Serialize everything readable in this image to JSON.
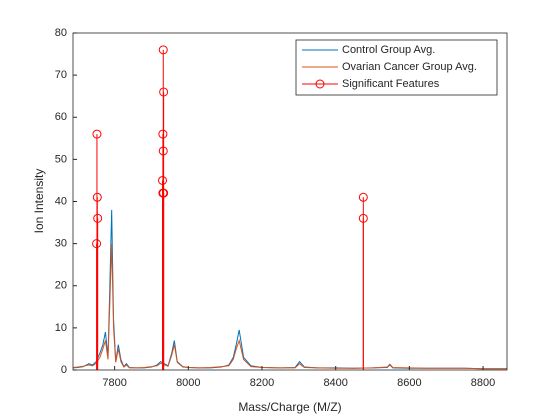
{
  "chart_data": {
    "type": "line",
    "xlabel": "Mass/Charge (M/Z)",
    "ylabel": "Ion Intensity",
    "xlim": [
      7687,
      8865
    ],
    "xticks": [
      7800,
      8000,
      8200,
      8400,
      8600,
      8800
    ],
    "ylim": [
      0,
      80
    ],
    "yticks": [
      0,
      10,
      20,
      30,
      40,
      50,
      60,
      70,
      80
    ],
    "legend": "upper right",
    "series": [
      {
        "name": "Control Group Avg.",
        "color": "#0072bd",
        "style": "line",
        "x": [
          7687,
          7700,
          7715,
          7730,
          7740,
          7750,
          7760,
          7768,
          7775,
          7782,
          7787,
          7792,
          7797,
          7803,
          7810,
          7817,
          7825,
          7832,
          7840,
          7860,
          7880,
          7900,
          7915,
          7925,
          7935,
          7945,
          7955,
          7962,
          7970,
          7985,
          8000,
          8030,
          8060,
          8090,
          8110,
          8122,
          8130,
          8138,
          8150,
          8170,
          8200,
          8250,
          8290,
          8302,
          8315,
          8350,
          8400,
          8450,
          8500,
          8540,
          8547,
          8555,
          8600,
          8650,
          8700,
          8750,
          8800,
          8865
        ],
        "values": [
          0.5,
          0.6,
          0.8,
          1.5,
          1.2,
          2,
          4,
          6,
          9,
          3,
          20,
          38,
          12,
          2,
          6,
          2.5,
          0.8,
          1.5,
          0.6,
          0.5,
          0.5,
          0.7,
          1.2,
          2,
          1.5,
          1,
          4,
          7,
          2,
          0.8,
          0.6,
          0.5,
          0.5,
          0.7,
          1.2,
          3,
          6,
          9.5,
          3,
          1,
          0.6,
          0.5,
          0.6,
          2,
          0.7,
          0.5,
          0.5,
          0.4,
          0.5,
          0.6,
          1.2,
          0.5,
          0.4,
          0.4,
          0.4,
          0.4,
          0.3,
          0.3
        ]
      },
      {
        "name": "Ovarian Cancer Group Avg.",
        "color": "#d95319",
        "style": "line",
        "x": [
          7687,
          7700,
          7715,
          7730,
          7740,
          7750,
          7760,
          7768,
          7775,
          7782,
          7787,
          7792,
          7797,
          7803,
          7810,
          7817,
          7825,
          7832,
          7840,
          7860,
          7880,
          7900,
          7915,
          7925,
          7935,
          7945,
          7955,
          7962,
          7970,
          7985,
          8000,
          8030,
          8060,
          8090,
          8110,
          8122,
          8130,
          8138,
          8150,
          8170,
          8200,
          8250,
          8290,
          8302,
          8315,
          8350,
          8400,
          8450,
          8500,
          8540,
          8547,
          8555,
          8600,
          8650,
          8700,
          8750,
          8800,
          8865
        ],
        "values": [
          0.6,
          0.7,
          0.9,
          1.2,
          1,
          1.6,
          3,
          5,
          7,
          2.5,
          16,
          30,
          10,
          1.8,
          5,
          2,
          0.7,
          1.2,
          0.5,
          0.5,
          0.6,
          0.8,
          1,
          1.6,
          1.2,
          0.9,
          3.5,
          6,
          1.8,
          0.7,
          0.6,
          0.5,
          0.6,
          0.8,
          1,
          2.5,
          5,
          7,
          2.5,
          0.8,
          0.6,
          0.5,
          0.5,
          1.5,
          0.6,
          0.5,
          0.4,
          0.4,
          0.5,
          0.7,
          1.4,
          0.6,
          0.5,
          0.4,
          0.4,
          0.4,
          0.3,
          0.3
        ]
      },
      {
        "name": "Significant Features",
        "color": "#ff0000",
        "style": "stem",
        "x": [
          7752,
          7753,
          7754,
          7751,
          7932,
          7933,
          7931,
          7932,
          7930,
          7931,
          7933,
          8475,
          8475
        ],
        "values": [
          56,
          41,
          36,
          30,
          76,
          66,
          56,
          52,
          45,
          42,
          42,
          41,
          36
        ]
      }
    ]
  }
}
